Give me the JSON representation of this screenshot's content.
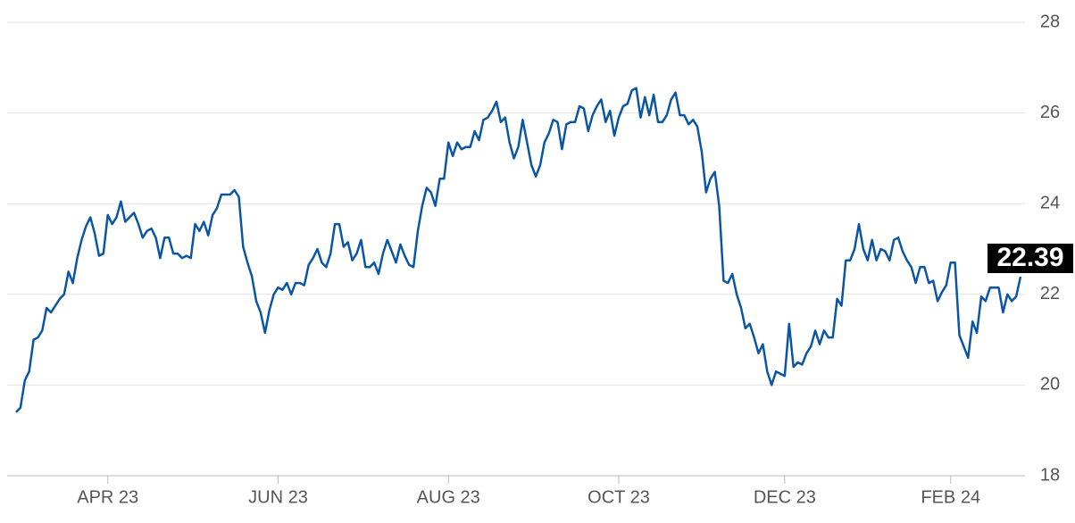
{
  "chart_data": {
    "type": "line",
    "values": [
      19.4,
      19.5,
      20.1,
      20.3,
      21.0,
      21.05,
      21.2,
      21.7,
      21.6,
      21.75,
      21.9,
      22.0,
      22.5,
      22.25,
      22.8,
      23.2,
      23.5,
      23.7,
      23.35,
      22.85,
      22.9,
      23.75,
      23.55,
      23.7,
      24.05,
      23.6,
      23.7,
      23.8,
      23.55,
      23.25,
      23.4,
      23.45,
      23.25,
      22.8,
      23.25,
      23.25,
      22.9,
      22.9,
      22.8,
      22.85,
      22.8,
      23.55,
      23.4,
      23.6,
      23.3,
      23.75,
      23.9,
      24.2,
      24.2,
      24.2,
      24.3,
      24.15,
      23.05,
      22.7,
      22.4,
      21.85,
      21.6,
      21.15,
      21.65,
      22.0,
      22.15,
      22.1,
      22.25,
      22.0,
      22.25,
      22.25,
      22.2,
      22.65,
      22.8,
      23.0,
      22.7,
      22.6,
      22.9,
      23.55,
      23.55,
      23.05,
      23.15,
      22.75,
      22.9,
      23.2,
      22.6,
      22.6,
      22.7,
      22.45,
      22.9,
      23.2,
      22.95,
      22.7,
      23.1,
      22.85,
      22.65,
      22.6,
      23.4,
      23.95,
      24.35,
      24.25,
      23.95,
      24.55,
      24.55,
      25.35,
      25.05,
      25.35,
      25.2,
      25.25,
      25.25,
      25.6,
      25.4,
      25.85,
      25.9,
      26.05,
      26.25,
      25.8,
      25.9,
      25.35,
      25.0,
      25.25,
      25.85,
      25.35,
      24.85,
      24.6,
      24.85,
      25.35,
      25.55,
      25.85,
      25.8,
      25.2,
      25.75,
      25.8,
      25.8,
      26.15,
      26.1,
      25.6,
      25.95,
      26.15,
      26.3,
      25.8,
      26.05,
      25.5,
      25.9,
      26.15,
      26.2,
      26.5,
      26.55,
      25.9,
      26.35,
      25.95,
      26.4,
      25.8,
      25.8,
      25.95,
      26.3,
      26.45,
      25.95,
      25.95,
      25.75,
      25.85,
      25.7,
      25.15,
      24.25,
      24.55,
      24.7,
      23.95,
      22.3,
      22.25,
      22.45,
      22.0,
      21.7,
      21.25,
      21.35,
      21.05,
      20.7,
      20.9,
      20.3,
      20.0,
      20.3,
      20.25,
      20.2,
      21.35,
      20.4,
      20.5,
      20.45,
      20.7,
      20.85,
      21.2,
      20.9,
      21.2,
      21.05,
      21.05,
      21.9,
      21.75,
      22.75,
      22.75,
      23.0,
      23.55,
      23.0,
      22.75,
      23.2,
      22.75,
      23.0,
      22.95,
      22.75,
      23.2,
      23.25,
      22.95,
      22.75,
      22.6,
      22.25,
      22.6,
      22.6,
      22.25,
      22.3,
      21.85,
      22.05,
      22.2,
      22.7,
      22.7,
      21.1,
      20.85,
      20.6,
      21.4,
      21.15,
      21.95,
      21.85,
      22.15,
      22.15,
      22.15,
      21.6,
      22.0,
      21.85,
      21.95,
      22.39
    ],
    "color": "#0b56a4",
    "xlim": [
      0,
      230
    ],
    "xticks": [
      {
        "value": 21,
        "label": "APR 23"
      },
      {
        "value": 60,
        "label": "JUN 23"
      },
      {
        "value": 99,
        "label": "AUG 23"
      },
      {
        "value": 138,
        "label": "OCT 23"
      },
      {
        "value": 176,
        "label": "DEC 23"
      },
      {
        "value": 214,
        "label": "FEB 24"
      }
    ],
    "ylim": [
      18,
      28
    ],
    "yticks": [
      18,
      20,
      22,
      24,
      26,
      28
    ],
    "grid": true
  }
}
